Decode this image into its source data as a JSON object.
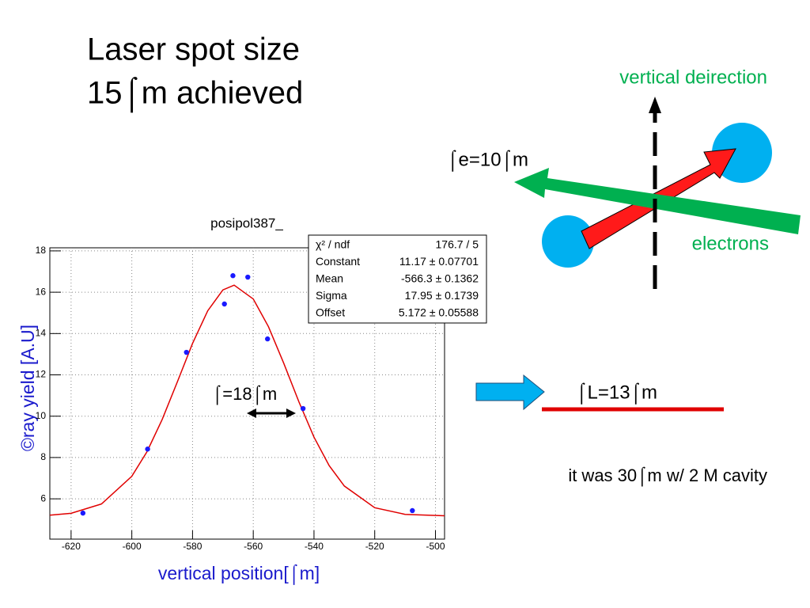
{
  "slide": {
    "title": [
      "Laser spot size",
      "15⌠m achieved"
    ],
    "direction_label": "vertical deirection",
    "electrons_label": "electrons",
    "sigma_e": "⌠e=10⌠m",
    "sigma_l": "⌠L=13⌠m",
    "note": "it was 30⌠m w/ 2 M cavity"
  },
  "chart_data": {
    "type": "scatter",
    "title": "posipol387_",
    "x_label": "vertical position[⌠m]",
    "y_label": "©ray yield [A.U]",
    "annotation": "⌠=18⌠m",
    "points": {
      "color": "#1a1aff",
      "x": [
        -616.1,
        -594.8,
        -582.0,
        -569.5,
        -566.7,
        -561.8,
        -555.3,
        -543.6,
        -507.6
      ],
      "values": [
        5.31,
        8.41,
        13.09,
        15.43,
        16.8,
        16.73,
        13.74,
        10.37,
        5.43
      ]
    },
    "fit": {
      "color": "#e00000",
      "x": [
        -627,
        -620,
        -610,
        -600,
        -595,
        -590,
        -585,
        -580,
        -575,
        -570,
        -566.3,
        -560,
        -555,
        -550,
        -545,
        -540,
        -535,
        -530,
        -520,
        -510,
        -497
      ],
      "values": [
        5.21,
        5.3,
        5.75,
        7.09,
        8.28,
        9.84,
        11.66,
        13.52,
        15.1,
        16.11,
        16.34,
        15.67,
        14.33,
        12.57,
        10.7,
        8.99,
        7.61,
        6.62,
        5.57,
        5.25,
        5.18
      ]
    },
    "stats": [
      [
        "χ² / ndf",
        "176.7 / 5"
      ],
      [
        "Constant",
        "11.17 ± 0.07701"
      ],
      [
        "Mean",
        "-566.3 ± 0.1362"
      ],
      [
        "Sigma",
        "17.95 ± 0.1739"
      ],
      [
        "Offset",
        "5.172 ± 0.05588"
      ]
    ],
    "xlim": [
      -627,
      -497
    ],
    "ylim": [
      4.05,
      18.15
    ],
    "xticks": [
      -620,
      -600,
      -580,
      -560,
      -540,
      -520,
      -500
    ],
    "yticks": [
      6,
      8,
      10,
      12,
      14,
      16,
      18
    ],
    "grid": true
  }
}
